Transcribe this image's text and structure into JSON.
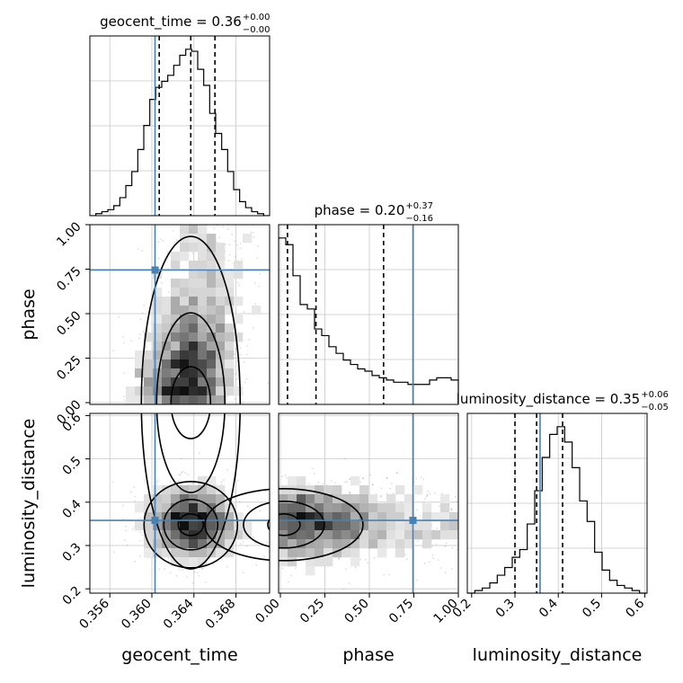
{
  "chart_data": {
    "type": "corner",
    "parameters": [
      "geocent_time",
      "phase",
      "luminosity_distance"
    ],
    "injection": {
      "geocent_time": 0.3603,
      "phase": 0.745,
      "luminosity_distance": 0.358
    },
    "ranges": {
      "geocent_time": [
        0.3541,
        0.3712
      ],
      "phase": [
        -0.01,
        1.0
      ],
      "luminosity_distance": [
        0.19,
        0.605
      ]
    },
    "ticks": {
      "geocent_time": [
        "0.356",
        "0.360",
        "0.364",
        "0.368"
      ],
      "phase": [
        "0.00",
        "0.25",
        "0.50",
        "0.75",
        "1.00"
      ],
      "luminosity_distance": [
        "0.2",
        "0.3",
        "0.4",
        "0.5",
        "0.6"
      ]
    },
    "tick_values": {
      "geocent_time": [
        0.356,
        0.36,
        0.364,
        0.368
      ],
      "phase": [
        0.0,
        0.25,
        0.5,
        0.75,
        1.0
      ],
      "luminosity_distance": [
        0.2,
        0.3,
        0.4,
        0.5,
        0.6
      ]
    },
    "titles": {
      "geocent_time": {
        "name": "geocent_time",
        "median": "0.36",
        "plus": "+0.00",
        "minus": "−0.00"
      },
      "phase": {
        "name": "phase",
        "median": "0.20",
        "plus": "+0.37",
        "minus": "−0.16"
      },
      "luminosity_distance": {
        "name": "luminosity_distance",
        "median": "0.35",
        "plus": "+0.06",
        "minus": "−0.05"
      }
    },
    "quantiles": {
      "geocent_time": [
        0.3607,
        0.3637,
        0.366
      ],
      "phase": [
        0.04,
        0.2,
        0.58
      ],
      "luminosity_distance": [
        0.3,
        0.35,
        0.41
      ]
    },
    "hist_1d": {
      "geocent_time": [
        0,
        1,
        2,
        3,
        5,
        9,
        15,
        22,
        33,
        45,
        58,
        64,
        67,
        70,
        75,
        80,
        83,
        82,
        73,
        65,
        51,
        41,
        33,
        22,
        13,
        7,
        4,
        2,
        1,
        0
      ],
      "phase": [
        75,
        72,
        58,
        45,
        43,
        34,
        31,
        26,
        23,
        20,
        18,
        16,
        15,
        13,
        12,
        11,
        10,
        10,
        9,
        9,
        9,
        11,
        12,
        12,
        11
      ],
      "luminosity_distance": [
        0,
        1,
        2,
        4,
        7,
        10,
        14,
        17,
        27,
        40,
        53,
        62,
        65,
        59,
        49,
        36,
        28,
        16,
        9,
        5,
        3,
        2,
        1,
        0
      ]
    },
    "grid": true
  }
}
